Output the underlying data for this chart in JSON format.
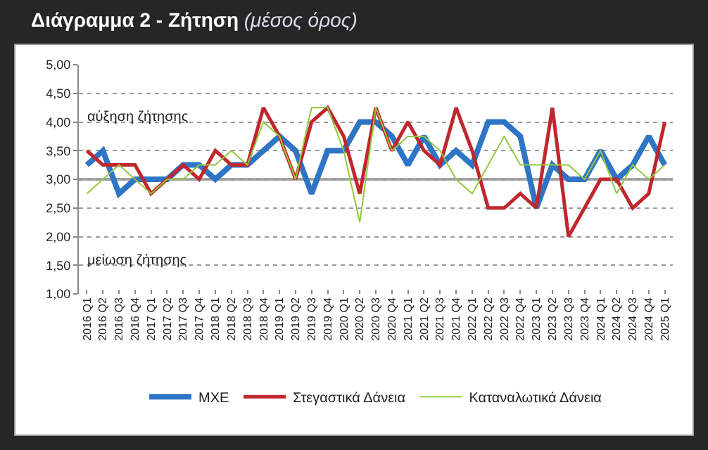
{
  "chart_data": {
    "type": "line",
    "title": "Διάγραμμα 2 - Ζήτηση",
    "subtitle": "(μέσος όρος)",
    "categories": [
      "2016 Q1",
      "2016 Q2",
      "2016 Q3",
      "2016 Q4",
      "2017 Q1",
      "2017 Q2",
      "2017 Q3",
      "2017 Q4",
      "2018 Q1",
      "2018 Q2",
      "2018 Q3",
      "2018 Q4",
      "2019 Q1",
      "2019 Q2",
      "2019 Q3",
      "2019 Q4",
      "2020 Q1",
      "2020 Q2",
      "2020 Q3",
      "2020 Q4",
      "2021 Q1",
      "2021 Q2",
      "2021 Q3",
      "2021 Q4",
      "2022 Q1",
      "2022 Q2",
      "2022 Q3",
      "2022 Q4",
      "2023 Q1",
      "2023 Q2",
      "2023 Q3",
      "2023 Q4",
      "2024 Q1",
      "2024 Q2",
      "2024 Q3",
      "2024 Q4",
      "2025 Q1"
    ],
    "series": [
      {
        "name": "ΜΧΕ",
        "color": "#2e75c6",
        "values": [
          3.25,
          3.5,
          2.75,
          3.0,
          3.0,
          3.0,
          3.25,
          3.25,
          3.0,
          3.25,
          3.25,
          3.5,
          3.75,
          3.5,
          2.75,
          3.5,
          3.5,
          4.0,
          4.0,
          3.75,
          3.25,
          3.75,
          3.25,
          3.5,
          3.25,
          4.0,
          4.0,
          3.75,
          2.5,
          3.25,
          3.0,
          3.0,
          3.5,
          3.0,
          3.25,
          3.75,
          3.25
        ]
      },
      {
        "name": "Στεγαστικά Δάνεια",
        "color": "#c0272d",
        "values": [
          3.5,
          3.25,
          3.25,
          3.25,
          2.75,
          3.0,
          3.25,
          3.0,
          3.5,
          3.25,
          3.25,
          4.25,
          3.75,
          3.0,
          4.0,
          4.25,
          3.75,
          2.75,
          4.25,
          3.5,
          4.0,
          3.5,
          3.25,
          4.25,
          3.5,
          2.5,
          2.5,
          2.75,
          2.5,
          4.25,
          2.0,
          2.5,
          3.0,
          3.0,
          2.5,
          2.75,
          4.0
        ]
      },
      {
        "name": "Καταναλωτικά Δάνεια",
        "color": "#92c83e",
        "values": [
          2.75,
          3.0,
          3.25,
          3.0,
          2.75,
          3.0,
          3.0,
          3.25,
          3.25,
          3.5,
          3.25,
          4.0,
          3.75,
          3.0,
          4.25,
          4.25,
          3.5,
          2.25,
          4.25,
          3.5,
          3.75,
          3.75,
          3.5,
          3.0,
          2.75,
          3.25,
          3.75,
          3.25,
          3.25,
          3.25,
          3.25,
          3.0,
          3.5,
          2.75,
          3.25,
          3.0,
          3.25
        ]
      }
    ],
    "ylim": [
      1,
      5
    ],
    "yticks": [
      {
        "value": 1,
        "label": "1,00"
      },
      {
        "value": 1.5,
        "label": "1,50"
      },
      {
        "value": 2,
        "label": "2,00"
      },
      {
        "value": 2.5,
        "label": "2,50"
      },
      {
        "value": 3,
        "label": "3,00"
      },
      {
        "value": 3.5,
        "label": "3,50"
      },
      {
        "value": 4,
        "label": "4,00"
      },
      {
        "value": 4.5,
        "label": "4,50"
      },
      {
        "value": 5,
        "label": "5,00"
      }
    ],
    "grid": "y",
    "line_style": "solid",
    "marker": "none",
    "legend": "bottom",
    "ref_lines": [
      {
        "axis": "y",
        "value": 3,
        "color": "#a6a6a6"
      }
    ],
    "annotations": [
      "αύξηση ζήτησης",
      "μείωση ζήτησης"
    ]
  }
}
